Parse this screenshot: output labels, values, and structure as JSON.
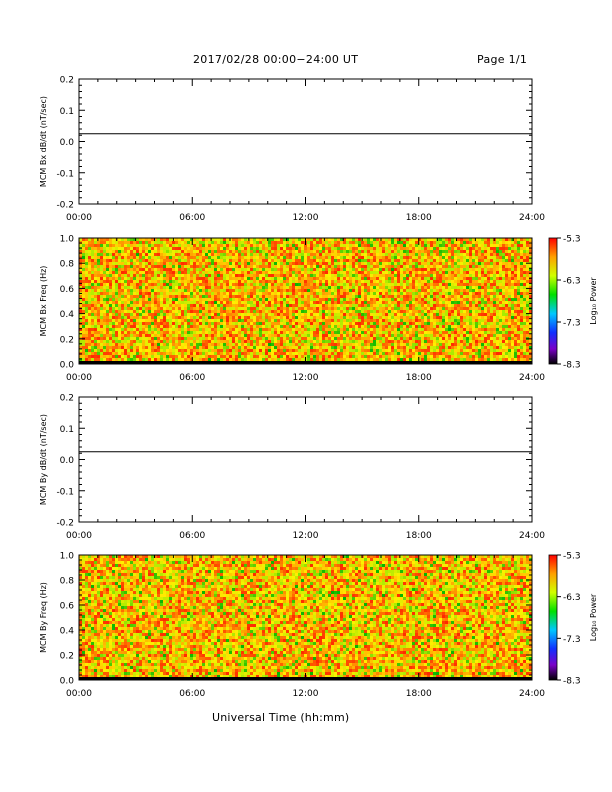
{
  "header": {
    "title": "2017/02/28  00:00−24:00 UT",
    "page": "Page 1/1"
  },
  "x_axis_title": "Universal Time (hh:mm)",
  "chart_data": [
    {
      "type": "line",
      "ylabel": "MCM Bx dB/dt (nT/sec)",
      "xlim": [
        0,
        24
      ],
      "xticks": [
        "00:00",
        "06:00",
        "12:00",
        "18:00",
        "24:00"
      ],
      "ylim": [
        -0.2,
        0.2
      ],
      "yticks": [
        "-0.2",
        "-0.1",
        "0.0",
        "0.1",
        "0.2"
      ],
      "series": [
        {
          "x": [
            0,
            24
          ],
          "y": [
            0.025,
            0.025
          ]
        }
      ]
    },
    {
      "type": "heatmap",
      "ylabel": "MCM Bx Freq (Hz)",
      "xlim": [
        0,
        24
      ],
      "xticks": [
        "00:00",
        "06:00",
        "12:00",
        "18:00",
        "24:00"
      ],
      "ylim": [
        0,
        1
      ],
      "yticks": [
        "0.0",
        "0.2",
        "0.4",
        "0.6",
        "0.8",
        "1.0"
      ],
      "colorbar": {
        "label": "Log₁₀ Power",
        "range": [
          -8.3,
          -5.3
        ],
        "ticks": [
          "-5.3",
          "-6.3",
          "-7.3",
          "-8.3"
        ]
      },
      "z_typical_range": [
        -6.3,
        -5.3
      ]
    },
    {
      "type": "line",
      "ylabel": "MCM By dB/dt (nT/sec)",
      "xlim": [
        0,
        24
      ],
      "xticks": [
        "00:00",
        "06:00",
        "12:00",
        "18:00",
        "24:00"
      ],
      "ylim": [
        -0.2,
        0.2
      ],
      "yticks": [
        "-0.2",
        "-0.1",
        "0.0",
        "0.1",
        "0.2"
      ],
      "series": [
        {
          "x": [
            0,
            24
          ],
          "y": [
            0.025,
            0.025
          ]
        }
      ]
    },
    {
      "type": "heatmap",
      "ylabel": "MCM By Freq (Hz)",
      "xlim": [
        0,
        24
      ],
      "xticks": [
        "00:00",
        "06:00",
        "12:00",
        "18:00",
        "24:00"
      ],
      "ylim": [
        0,
        1
      ],
      "yticks": [
        "0.0",
        "0.2",
        "0.4",
        "0.6",
        "0.8",
        "1.0"
      ],
      "colorbar": {
        "label": "Log₁₀ Power",
        "range": [
          -8.3,
          -5.3
        ],
        "ticks": [
          "-5.3",
          "-6.3",
          "-7.3",
          "-8.3"
        ]
      },
      "z_typical_range": [
        -6.3,
        -5.3
      ]
    }
  ]
}
